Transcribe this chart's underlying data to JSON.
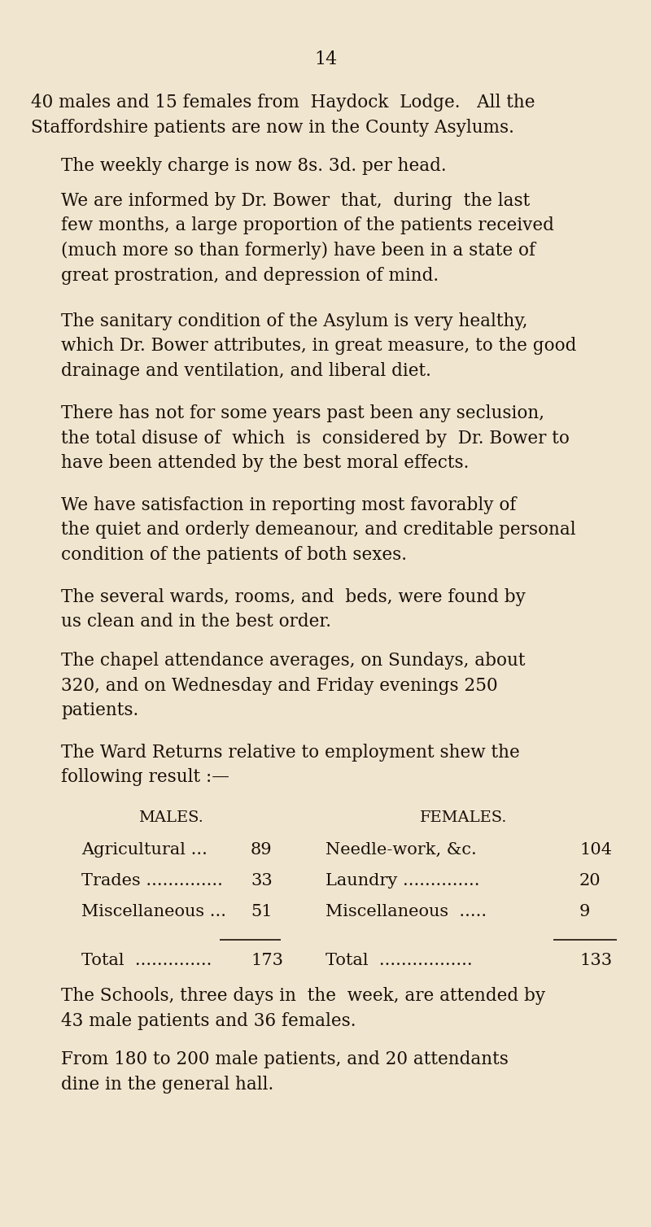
{
  "background_color": "#f0e6d0",
  "text_color": "#1a1008",
  "page_number": "14",
  "body_font_size": 15.5,
  "page_num_font_size": 16,
  "table_header_font_size": 14.0,
  "table_row_font_size": 15.0,
  "paragraphs": [
    {
      "indent": false,
      "text": "40 males and 15 females from  Haydock  Lodge.   All the\nStaffordshire patients are now in the County Asylums."
    },
    {
      "indent": true,
      "text": "The weekly charge is now 8s. 3d. per head."
    },
    {
      "indent": true,
      "text": "We are informed by Dr. Bower  that,  during  the last\nfew months, a large proportion of the patients received\n(much more so than formerly) have been in a state of\ngreat prostration, and depression of mind."
    },
    {
      "indent": true,
      "text": "The sanitary condition of the Asylum is very healthy,\nwhich Dr. Bower attributes, in great measure, to the good\ndrainage and ventilation, and liberal diet."
    },
    {
      "indent": true,
      "text": "There has not for some years past been any seclusion,\nthe total disuse of  which  is  considered by  Dr. Bower to\nhave been attended by the best moral effects."
    },
    {
      "indent": true,
      "text": "We have satisfaction in reporting most favorably of\nthe quiet and orderly demeanour, and creditable personal\ncondition of the patients of both sexes."
    },
    {
      "indent": true,
      "text": "The several wards, rooms, and  beds, were found by\nus clean and in the best order."
    },
    {
      "indent": true,
      "text": "The chapel attendance averages, on Sundays, about\n320, and on Wednesday and Friday evenings 250\npatients."
    },
    {
      "indent": true,
      "text": "The Ward Returns relative to employment shew the\nfollowing result :—"
    }
  ],
  "table_header_males": "MALES.",
  "table_header_females": "FEMALES.",
  "table_rows": [
    {
      "male_cat": "Agricultural ...",
      "male_val": "89",
      "fem_cat": "Needle-work, &c.",
      "fem_val": "104"
    },
    {
      "male_cat": "Trades ..............",
      "male_val": "33",
      "fem_cat": "Laundry ..............",
      "fem_val": "20"
    },
    {
      "male_cat": "Miscellaneous ...",
      "male_val": "51",
      "fem_cat": "Miscellaneous  .....",
      "fem_val": "9"
    }
  ],
  "total_male_label": "Total  ..............",
  "total_male_val": "173",
  "total_female_label": "Total  .................",
  "total_female_val": "133",
  "footer_paragraphs": [
    {
      "indent": true,
      "text": "The Schools, three days in  the  week, are attended by\n43 male patients and 36 females."
    },
    {
      "indent": true,
      "text": "From 180 to 200 male patients, and 20 attendants\ndine in the general hall."
    }
  ]
}
